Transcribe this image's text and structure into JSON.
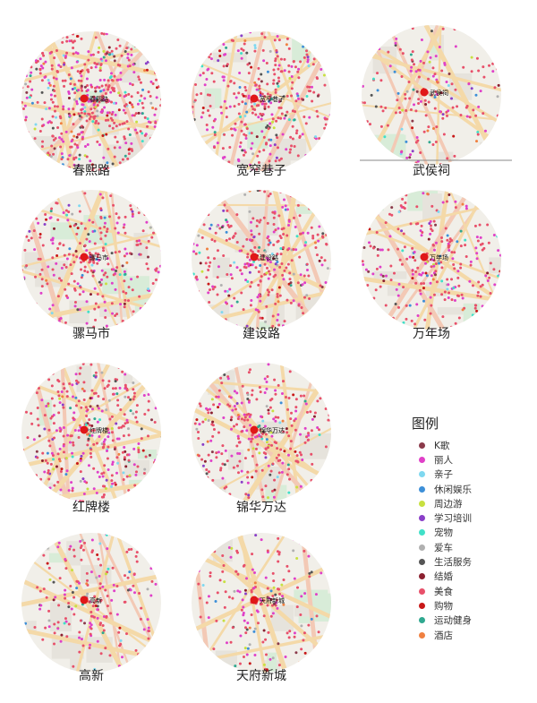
{
  "maps": [
    {
      "name": "春熙路",
      "center_label": "春熙路"
    },
    {
      "name": "宽窄巷子",
      "center_label": "宽窄巷子"
    },
    {
      "name": "武侯祠",
      "center_label": "武侯祠"
    },
    {
      "name": "骡马市",
      "center_label": "骡马市"
    },
    {
      "name": "建设路",
      "center_label": "建设路"
    },
    {
      "name": "万年场",
      "center_label": "万年场"
    },
    {
      "name": "红牌楼",
      "center_label": "红牌楼"
    },
    {
      "name": "锦华万达",
      "center_label": "锦华万达"
    },
    {
      "name": "高新",
      "center_label": "高新"
    },
    {
      "name": "天府新城",
      "center_label": "天府新城"
    }
  ],
  "legend": {
    "title": "图例",
    "items": [
      {
        "label": "K歌",
        "color": "#8b3a4a"
      },
      {
        "label": "丽人",
        "color": "#e040c8"
      },
      {
        "label": "亲子",
        "color": "#7fd8f0"
      },
      {
        "label": "休闲娱乐",
        "color": "#3d8fd8"
      },
      {
        "label": "周边游",
        "color": "#c8e040"
      },
      {
        "label": "学习培训",
        "color": "#8a3fc8"
      },
      {
        "label": "宠物",
        "color": "#40e0c8"
      },
      {
        "label": "爱车",
        "color": "#b0b0b0"
      },
      {
        "label": "生活服务",
        "color": "#555555"
      },
      {
        "label": "结婚",
        "color": "#8b2030"
      },
      {
        "label": "美食",
        "color": "#e8506a"
      },
      {
        "label": "购物",
        "color": "#c81818"
      },
      {
        "label": "运动健身",
        "color": "#30a890"
      },
      {
        "label": "酒店",
        "color": "#f08040"
      }
    ]
  }
}
